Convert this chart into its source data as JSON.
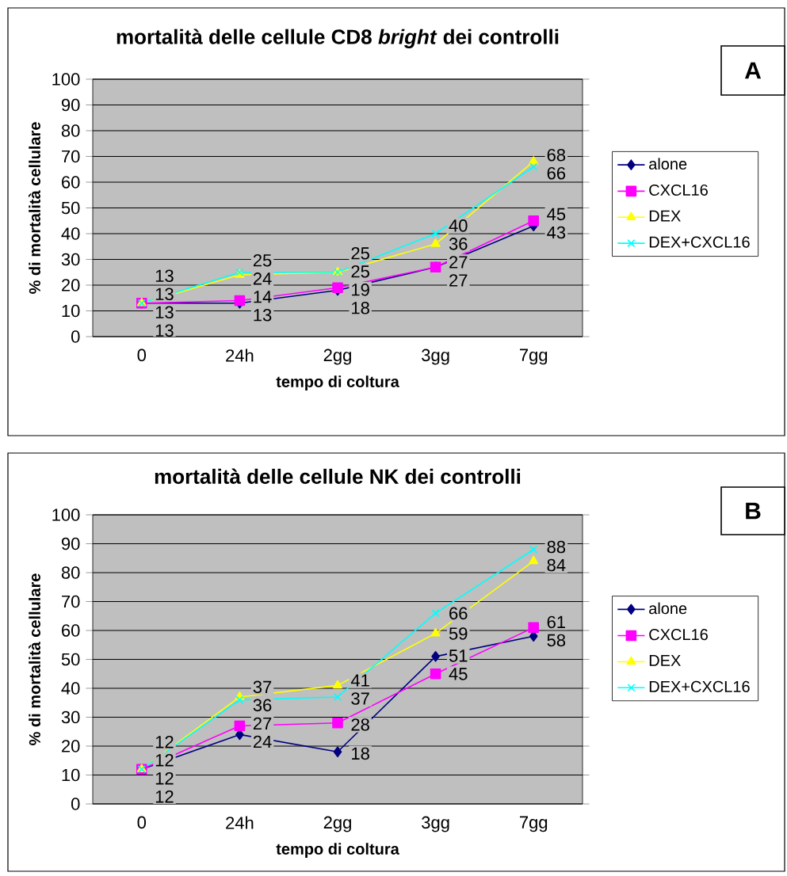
{
  "chart_data": [
    {
      "type": "line",
      "title": "mortalità delle cellule CD8 *bright* dei controlli",
      "xlabel": "tempo di coltura",
      "ylabel": "% di mortalità cellulare",
      "categories": [
        "0",
        "24h",
        "2gg",
        "3gg",
        "7gg"
      ],
      "series": [
        {
          "name": "alone",
          "color": "#000080",
          "marker": "diamond",
          "values": [
            13,
            13,
            18,
            27,
            43
          ]
        },
        {
          "name": "CXCL16",
          "color": "#ff00ff",
          "marker": "square",
          "values": [
            13,
            14,
            19,
            27,
            45
          ]
        },
        {
          "name": "DEX",
          "color": "#ffff00",
          "marker": "triangle",
          "values": [
            13,
            24,
            25,
            36,
            68
          ]
        },
        {
          "name": "DEX+CXCL16",
          "color": "#00ffff",
          "marker": "cross",
          "values": [
            13,
            25,
            25,
            40,
            66
          ]
        }
      ],
      "ylim": [
        0,
        100
      ],
      "yticks": [
        0,
        10,
        20,
        30,
        40,
        50,
        60,
        70,
        80,
        90,
        100
      ],
      "grid": "y",
      "legend": "right",
      "data_labels": true,
      "annotations": [
        "A"
      ]
    },
    {
      "type": "line",
      "title": "mortalità delle cellule NK dei controlli",
      "xlabel": "tempo di coltura",
      "ylabel": "% di mortalità cellulare",
      "categories": [
        "0",
        "24h",
        "2gg",
        "3gg",
        "7gg"
      ],
      "series": [
        {
          "name": "alone",
          "color": "#000080",
          "marker": "diamond",
          "values": [
            12,
            24,
            18,
            51,
            58
          ]
        },
        {
          "name": "CXCL16",
          "color": "#ff00ff",
          "marker": "square",
          "values": [
            12,
            27,
            28,
            45,
            61
          ]
        },
        {
          "name": "DEX",
          "color": "#ffff00",
          "marker": "triangle",
          "values": [
            12,
            37,
            41,
            59,
            84
          ]
        },
        {
          "name": "DEX+CXCL16",
          "color": "#00ffff",
          "marker": "cross",
          "values": [
            12,
            36,
            37,
            66,
            88
          ]
        }
      ],
      "ylim": [
        0,
        100
      ],
      "yticks": [
        0,
        10,
        20,
        30,
        40,
        50,
        60,
        70,
        80,
        90,
        100
      ],
      "grid": "y",
      "legend": "right",
      "data_labels": true,
      "annotations": [
        "B"
      ]
    }
  ]
}
